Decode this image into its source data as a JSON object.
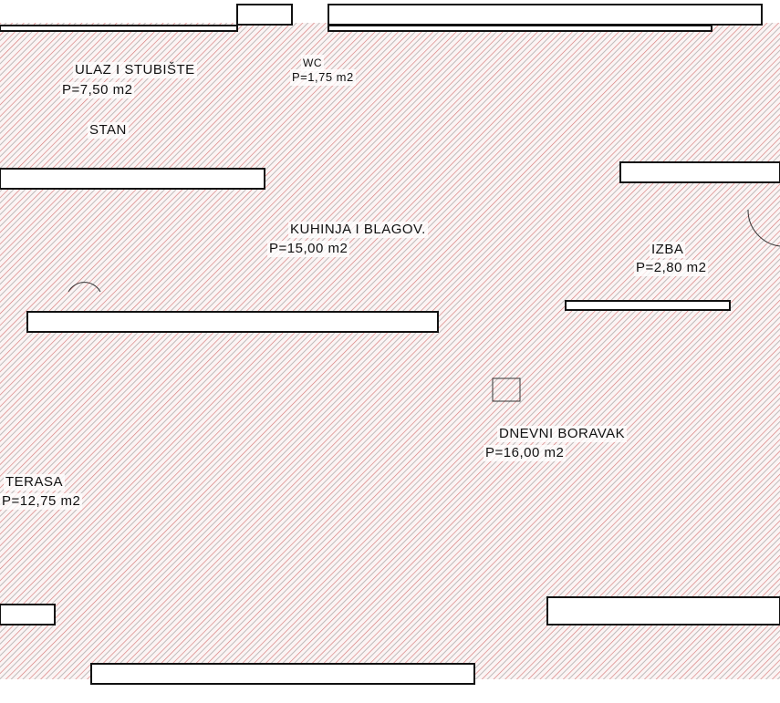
{
  "plan": {
    "hatch_color": "#c9504f",
    "wall_color": "#111111",
    "rooms": [
      {
        "name": "ULAZ I STUBIŠTE",
        "area": "P=7,50 m2"
      },
      {
        "name": "STAN",
        "area": ""
      },
      {
        "name": "WC",
        "area": "P=1,75 m2"
      },
      {
        "name": "KUHINJA I BLAGOV.",
        "area": "P=15,00 m2"
      },
      {
        "name": "IZBA",
        "area": "P=2,80 m2"
      },
      {
        "name": "DNEVNI BORAVAK",
        "area": "P=16,00 m2"
      },
      {
        "name": "TERASA",
        "area": "P=12,75 m2"
      }
    ]
  }
}
